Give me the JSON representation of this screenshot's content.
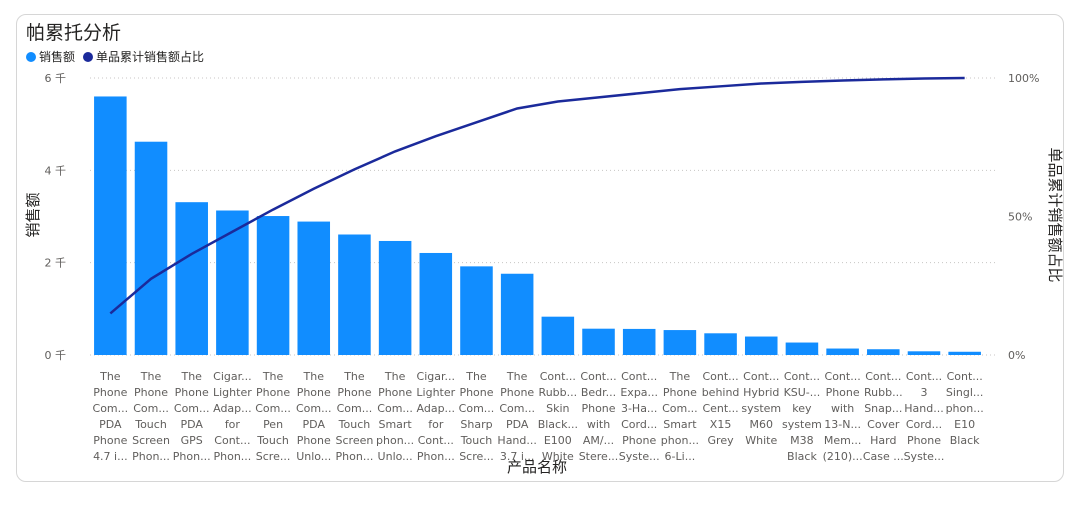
{
  "chart_data": {
    "type": "bar",
    "title": "帕累托分析",
    "xlabel": "产品名称",
    "ylabel": "销售额",
    "y2label": "单品累计销售额占比",
    "ylim": [
      0,
      6000
    ],
    "y2lim": [
      0,
      100
    ],
    "yticks": [
      "0 千",
      "2 千",
      "4 千",
      "6 千"
    ],
    "y2ticks": [
      "0%",
      "50%",
      "100%"
    ],
    "colors": {
      "bar": "#118dff",
      "line": "#1b2a9b"
    },
    "legend_position": "top-left",
    "grid": true,
    "categories": [
      [
        "The",
        "Phone",
        "Com...",
        "PDA",
        "Phone",
        "4.7 i..."
      ],
      [
        "The",
        "Phone",
        "Com...",
        "Touch",
        "Screen",
        "Phon..."
      ],
      [
        "The",
        "Phone",
        "Com...",
        "PDA",
        "GPS",
        "Phon..."
      ],
      [
        "Cigar...",
        "Lighter",
        "Adap...",
        "for",
        "Cont...",
        "Phon..."
      ],
      [
        "The",
        "Phone",
        "Com...",
        "Pen",
        "Touch",
        "Scre..."
      ],
      [
        "The",
        "Phone",
        "Com...",
        "PDA",
        "Phone",
        "Unlo..."
      ],
      [
        "The",
        "Phone",
        "Com...",
        "Touch",
        "Screen",
        "Phon..."
      ],
      [
        "The",
        "Phone",
        "Com...",
        "Smart",
        "phon...",
        "Unlo..."
      ],
      [
        "Cigar...",
        "Lighter",
        "Adap...",
        "for",
        "Cont...",
        "Phon..."
      ],
      [
        "The",
        "Phone",
        "Com...",
        "Sharp",
        "Touch",
        "Scre..."
      ],
      [
        "The",
        "Phone",
        "Com...",
        "PDA",
        "Hand...",
        "3.7 i..."
      ],
      [
        "Cont...",
        "Rubb...",
        "Skin",
        "Black...",
        "E100",
        "White"
      ],
      [
        "Cont...",
        "Bedr...",
        "Phone",
        "with",
        "AM/...",
        "Stere..."
      ],
      [
        "Cont...",
        "Expa...",
        "3-Ha...",
        "Cord...",
        "Phone",
        "Syste..."
      ],
      [
        "The",
        "Phone",
        "Com...",
        "Smart",
        "phon...",
        "6-Li..."
      ],
      [
        "Cont...",
        "behind",
        "Cent...",
        "X15",
        "Grey"
      ],
      [
        "Cont...",
        "Hybrid",
        "system",
        "M60",
        "White"
      ],
      [
        "Cont...",
        "KSU-...",
        "key",
        "system",
        "M38",
        "Black"
      ],
      [
        "Cont...",
        "Phone",
        "with",
        "13-N...",
        "Mem...",
        "(210)..."
      ],
      [
        "Cont...",
        "Rubb...",
        "Snap...",
        "Cover",
        "Hard",
        "Case ..."
      ],
      [
        "Cont...",
        "3",
        "Hand...",
        "Cord...",
        "Phone",
        "Syste..."
      ],
      [
        "Cont...",
        "Singl...",
        "phon...",
        "E10",
        "Black"
      ]
    ],
    "series": [
      {
        "name": "销售额",
        "type": "bar",
        "values": [
          5600,
          4620,
          3310,
          3130,
          3010,
          2890,
          2610,
          2470,
          2210,
          1920,
          1760,
          830,
          570,
          565,
          540,
          470,
          400,
          270,
          140,
          125,
          80,
          70
        ]
      },
      {
        "name": "单品累计销售额占比",
        "type": "line",
        "axis": "y2",
        "values": [
          15,
          27.5,
          36.5,
          44.5,
          52.5,
          60,
          67,
          73.5,
          79,
          84,
          89,
          91.5,
          93,
          94.5,
          96,
          97,
          98,
          98.6,
          99.1,
          99.5,
          99.8,
          100
        ]
      }
    ]
  }
}
